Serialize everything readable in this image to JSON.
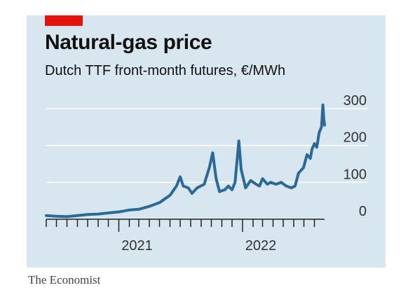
{
  "header": {
    "title": "Natural-gas price",
    "subtitle": "Dutch TTF front-month futures, €/MWh"
  },
  "footer": {
    "credit": "The Economist"
  },
  "colors": {
    "panel": "#d8e6ef",
    "line": "#2a6a99",
    "accent": "#e3120b",
    "grid": "#ffffff"
  },
  "chart_data": {
    "type": "line",
    "title": "Natural-gas price",
    "subtitle": "Dutch TTF front-month futures, €/MWh",
    "xlim": [
      "2020-06-01",
      "2022-08-31"
    ],
    "ylim": [
      0,
      300
    ],
    "yticks": [
      0,
      100,
      200,
      300
    ],
    "y_axis_side": "right",
    "grid": true,
    "x_tick_months": [
      "2020-06",
      "2020-07",
      "2020-08",
      "2020-09",
      "2020-10",
      "2020-11",
      "2020-12",
      "2021-01",
      "2021-02",
      "2021-03",
      "2021-04",
      "2021-05",
      "2021-06",
      "2021-07",
      "2021-08",
      "2021-09",
      "2021-10",
      "2021-11",
      "2021-12",
      "2022-01",
      "2022-02",
      "2022-03",
      "2022-04",
      "2022-05",
      "2022-06",
      "2022-07",
      "2022-08"
    ],
    "x_labels": [
      {
        "text": "2021",
        "date": "2021-01-01"
      },
      {
        "text": "2022",
        "date": "2022-01-01"
      }
    ],
    "series": [
      {
        "points": [
          [
            "2020-06-01",
            10
          ],
          [
            "2020-07-01",
            8
          ],
          [
            "2020-08-01",
            7
          ],
          [
            "2020-09-01",
            10
          ],
          [
            "2020-10-01",
            13
          ],
          [
            "2020-11-01",
            14
          ],
          [
            "2020-12-01",
            17
          ],
          [
            "2021-01-01",
            20
          ],
          [
            "2021-02-01",
            25
          ],
          [
            "2021-03-01",
            27
          ],
          [
            "2021-04-01",
            35
          ],
          [
            "2021-05-01",
            45
          ],
          [
            "2021-06-01",
            65
          ],
          [
            "2021-06-20",
            90
          ],
          [
            "2021-07-01",
            115
          ],
          [
            "2021-07-10",
            90
          ],
          [
            "2021-07-25",
            85
          ],
          [
            "2021-08-05",
            70
          ],
          [
            "2021-08-20",
            85
          ],
          [
            "2021-09-10",
            95
          ],
          [
            "2021-09-25",
            140
          ],
          [
            "2021-10-05",
            180
          ],
          [
            "2021-10-15",
            110
          ],
          [
            "2021-10-25",
            75
          ],
          [
            "2021-11-10",
            80
          ],
          [
            "2021-11-20",
            90
          ],
          [
            "2021-12-01",
            80
          ],
          [
            "2021-12-10",
            100
          ],
          [
            "2021-12-21",
            212
          ],
          [
            "2021-12-28",
            135
          ],
          [
            "2022-01-10",
            85
          ],
          [
            "2022-01-25",
            105
          ],
          [
            "2022-02-10",
            95
          ],
          [
            "2022-02-20",
            90
          ],
          [
            "2022-03-01",
            110
          ],
          [
            "2022-03-15",
            95
          ],
          [
            "2022-03-25",
            100
          ],
          [
            "2022-04-10",
            95
          ],
          [
            "2022-04-25",
            100
          ],
          [
            "2022-05-10",
            90
          ],
          [
            "2022-05-25",
            85
          ],
          [
            "2022-06-05",
            90
          ],
          [
            "2022-06-15",
            125
          ],
          [
            "2022-06-30",
            140
          ],
          [
            "2022-07-10",
            175
          ],
          [
            "2022-07-20",
            165
          ],
          [
            "2022-07-25",
            190
          ],
          [
            "2022-08-01",
            205
          ],
          [
            "2022-08-08",
            195
          ],
          [
            "2022-08-15",
            235
          ],
          [
            "2022-08-22",
            250
          ],
          [
            "2022-08-26",
            310
          ],
          [
            "2022-08-29",
            270
          ],
          [
            "2022-08-31",
            255
          ]
        ]
      }
    ]
  }
}
